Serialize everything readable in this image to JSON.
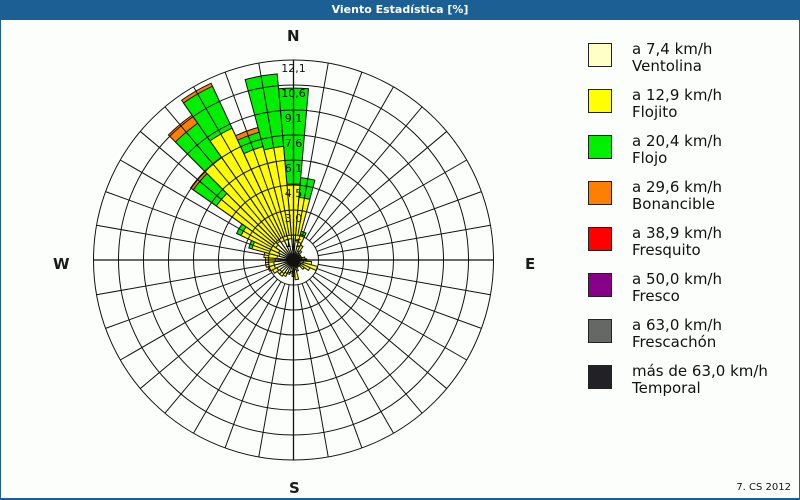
{
  "title": "Viento Estadística [%]",
  "footer": "7. CS 2012",
  "compass": {
    "N": "N",
    "E": "E",
    "S": "S",
    "W": "W"
  },
  "legend": [
    {
      "range": "a 7,4 km/h",
      "name": "Ventolina",
      "color": "#ffffc8"
    },
    {
      "range": "a 12,9 km/h",
      "name": "Flojito",
      "color": "#ffff00"
    },
    {
      "range": "a 20,4 km/h",
      "name": "Flojo",
      "color": "#00ee00"
    },
    {
      "range": "a 29,6 km/h",
      "name": "Bonancible",
      "color": "#ff8000"
    },
    {
      "range": "a 38,9 km/h",
      "name": "Fresquito",
      "color": "#ff0000"
    },
    {
      "range": "a 50,0 km/h",
      "name": "Fresco",
      "color": "#880088"
    },
    {
      "range": "a 63,0 km/h",
      "name": "Frescachón",
      "color": "#666866"
    },
    {
      "range": "más de 63,0 km/h",
      "name": "Temporal",
      "color": "#222226"
    }
  ],
  "chart_data": {
    "type": "wind_rose",
    "title": "Viento Estadística [%]",
    "rings": [
      "1,5",
      "3,0",
      "4,5",
      "6,1",
      "7,6",
      "9,1",
      "10,6",
      "12,1"
    ],
    "rmax": 12.1,
    "sector_width_deg": 10,
    "series_names": [
      "Ventolina",
      "Flojito",
      "Flojo",
      "Bonancible"
    ],
    "directions_deg": [
      0,
      10,
      20,
      30,
      40,
      50,
      60,
      70,
      80,
      90,
      100,
      110,
      120,
      130,
      140,
      150,
      160,
      170,
      180,
      190,
      200,
      210,
      220,
      230,
      240,
      250,
      260,
      270,
      280,
      290,
      300,
      310,
      320,
      330,
      340,
      350
    ],
    "series": [
      {
        "name": "Ventolina",
        "values": [
          1.5,
          1.2,
          0.9,
          0.6,
          0.5,
          0.4,
          0.4,
          0.4,
          0.5,
          0.5,
          0.6,
          0.6,
          0.5,
          0.5,
          0.4,
          0.4,
          0.5,
          0.6,
          0.6,
          0.7,
          0.8,
          0.9,
          1.0,
          1.0,
          1.1,
          1.2,
          1.2,
          1.1,
          1.0,
          0.9,
          1.0,
          1.3,
          1.4,
          1.3,
          1.3,
          1.3
        ]
      },
      {
        "name": "Flojito",
        "values": [
          3.1,
          2.6,
          0.7,
          0.4,
          0.2,
          0.1,
          0.1,
          0.1,
          0.2,
          0.3,
          0.5,
          0.9,
          0.6,
          0.3,
          0.1,
          0.1,
          0.2,
          0.6,
          0.4,
          0.1,
          0.1,
          0.2,
          0.2,
          0.2,
          0.3,
          0.4,
          0.5,
          0.6,
          0.8,
          1.7,
          2.5,
          4.4,
          6.2,
          7.5,
          5.8,
          5.6
        ]
      },
      {
        "name": "Flojo",
        "values": [
          5.8,
          1.2,
          0.2,
          0,
          0,
          0,
          0,
          0,
          0,
          0,
          0,
          0,
          0,
          0,
          0,
          0,
          0,
          0,
          0,
          0,
          0,
          0,
          0,
          0,
          0,
          0,
          0,
          0,
          0,
          0.2,
          0.3,
          1.7,
          2.5,
          2.8,
          0.9,
          4.4
        ]
      },
      {
        "name": "Bonancible",
        "values": [
          0,
          0,
          0,
          0,
          0,
          0,
          0,
          0,
          0,
          0,
          0,
          0,
          0,
          0,
          0,
          0,
          0,
          0,
          0,
          0,
          0,
          0,
          0,
          0,
          0,
          0,
          0,
          0,
          0,
          0,
          0,
          0.2,
          0.6,
          0.2,
          0.3,
          0
        ]
      }
    ]
  }
}
